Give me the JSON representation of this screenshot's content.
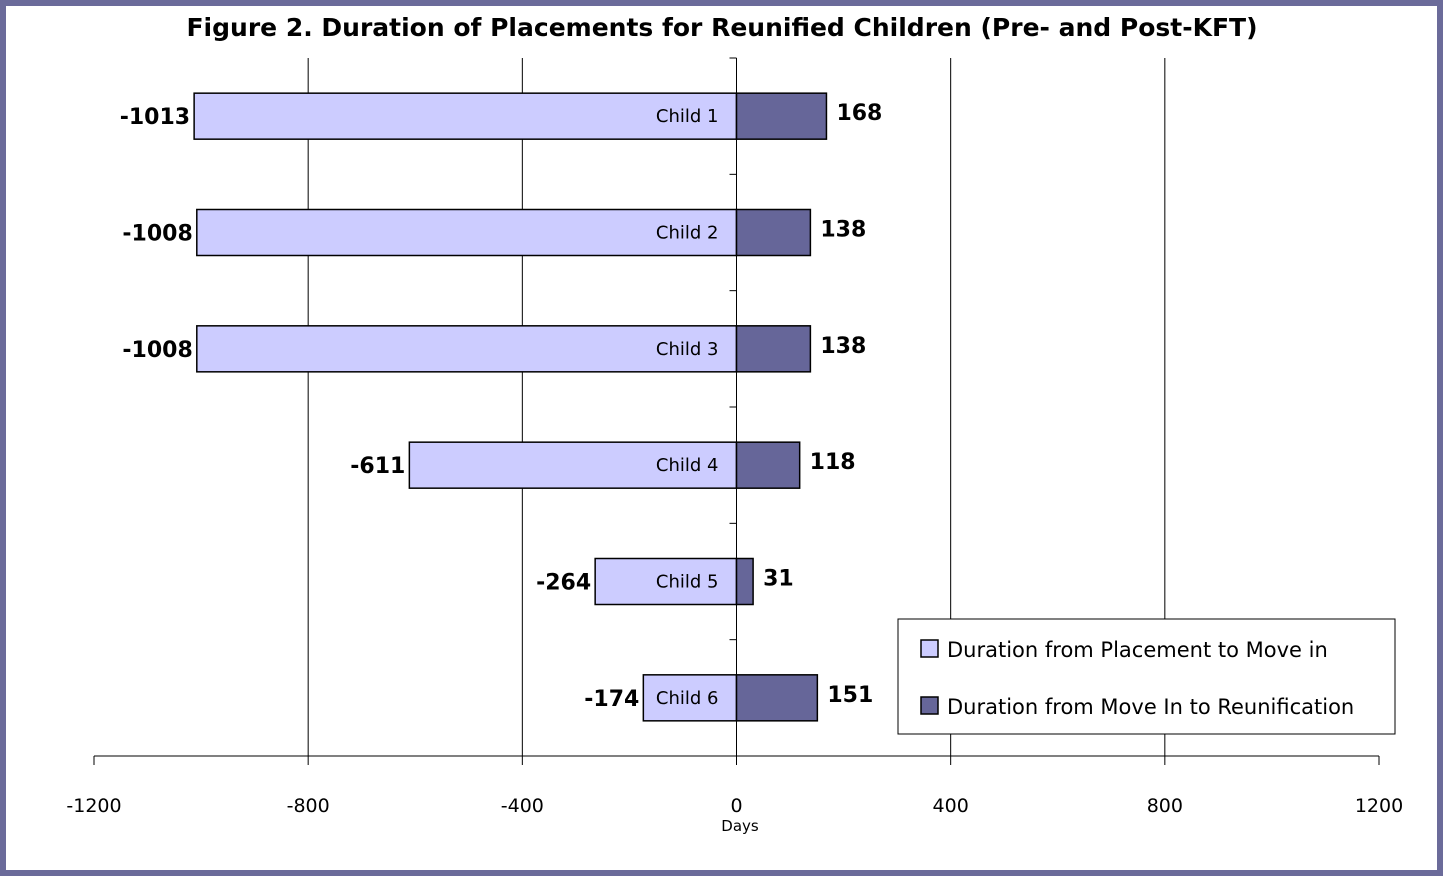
{
  "chart_data": {
    "type": "bar",
    "orientation": "horizontal",
    "stacked": true,
    "title": "Figure 2. Duration of Placements for Reunified Children (Pre- and Post-KFT)",
    "xlabel": "Days",
    "ylabel": "",
    "xlim": [
      -1200,
      1200
    ],
    "xticks": [
      "-1200",
      "-800",
      "-400",
      "0",
      "400",
      "800",
      "1200"
    ],
    "grid": true,
    "legend_position": "bottom-right",
    "categories": [
      "Child 1",
      "Child 2",
      "Child 3",
      "Child 4",
      "Child 5",
      "Child 6"
    ],
    "series": [
      {
        "name": "Duration from Placement to Move in",
        "color": "#ccccff",
        "values": [
          -1013,
          -1008,
          -1008,
          -611,
          -264,
          -174
        ],
        "labels": [
          "-1013",
          "-1008",
          "-1008",
          "-611",
          "-264",
          "-174"
        ]
      },
      {
        "name": "Duration from Move In to Reunification",
        "color": "#666699",
        "values": [
          168,
          138,
          138,
          118,
          31,
          151
        ],
        "labels": [
          "168",
          "138",
          "138",
          "118",
          "31",
          "151"
        ]
      }
    ]
  }
}
